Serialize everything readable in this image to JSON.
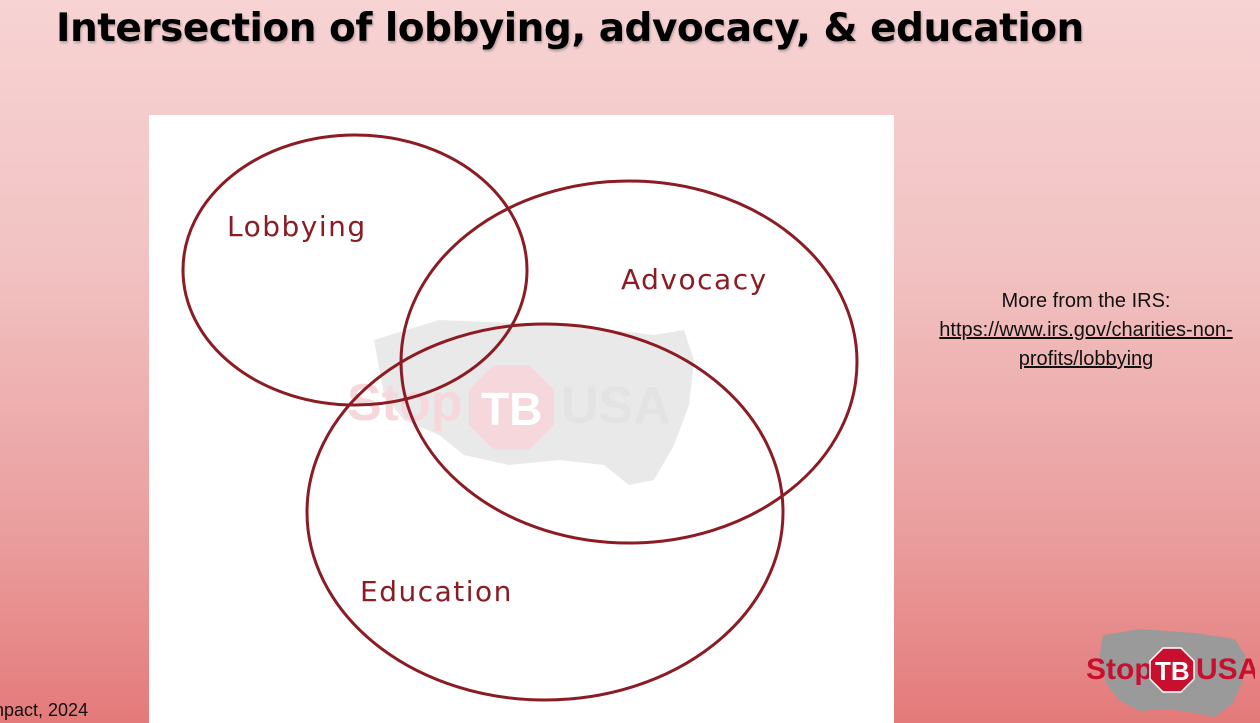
{
  "slide": {
    "title": "Intersection of lobbying, advocacy, & education"
  },
  "diagram": {
    "labels": {
      "lobbying": "Lobbying",
      "advocacy": "Advocacy",
      "education": "Education"
    },
    "watermark": {
      "stop": "Stop",
      "tb": "TB",
      "usa": "USA"
    }
  },
  "irs": {
    "intro": "More from the IRS:",
    "link": "https://www.irs.gov/charities-non-profits/lobbying"
  },
  "footer": {
    "citation": "npact, 2024"
  },
  "logo": {
    "stop": "Stop",
    "tb": "TB",
    "usa": "USA"
  },
  "colors": {
    "diagram_stroke": "#8b1c24",
    "logo_red": "#c8102e",
    "logo_map_gray": "#9a9a9a"
  }
}
